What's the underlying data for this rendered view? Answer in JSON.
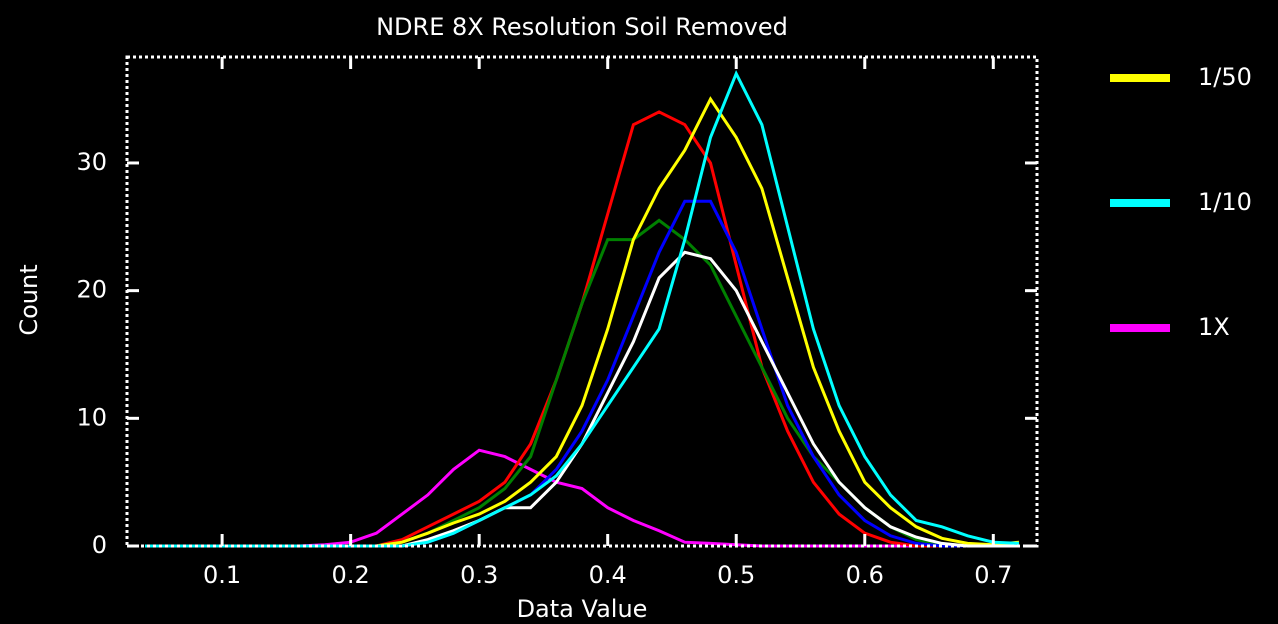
{
  "chart_data": {
    "type": "line",
    "title": "NDRE 8X Resolution Soil Removed",
    "x_label": "Data Value",
    "y_label": "Count",
    "x": [
      0.04,
      0.06,
      0.08,
      0.1,
      0.12,
      0.14,
      0.16,
      0.18,
      0.2,
      0.22,
      0.24,
      0.26,
      0.28,
      0.3,
      0.32,
      0.34,
      0.36,
      0.38,
      0.4,
      0.42,
      0.44,
      0.46,
      0.48,
      0.5,
      0.52,
      0.54,
      0.56,
      0.58,
      0.6,
      0.62,
      0.64,
      0.66,
      0.68,
      0.7,
      0.72
    ],
    "series": [
      {
        "name": "1X",
        "color": "#ff00ff",
        "values": [
          0,
          0,
          0,
          0,
          0,
          0,
          0,
          0.1,
          0.3,
          1,
          2.5,
          4,
          6,
          7.5,
          7,
          6,
          5,
          4.5,
          3,
          2,
          1.2,
          0.3,
          0.2,
          0.1,
          0,
          0,
          0,
          0,
          0,
          0,
          0,
          0,
          0,
          0,
          0
        ]
      },
      {
        "color": "#ff0000",
        "values": [
          0,
          0,
          0,
          0,
          0,
          0,
          0,
          0,
          0,
          0,
          0.5,
          1.5,
          2.5,
          3.5,
          5,
          8,
          13,
          19,
          26,
          33,
          34,
          33,
          30,
          22,
          14,
          9,
          5,
          2.5,
          1,
          0.3,
          0,
          0,
          0,
          0,
          0
        ]
      },
      {
        "color": "#008000",
        "values": [
          0,
          0,
          0,
          0,
          0,
          0,
          0,
          0,
          0,
          0,
          0.3,
          1,
          2,
          3,
          4.5,
          7,
          13,
          19,
          24,
          24,
          25.5,
          24,
          22,
          18,
          14,
          10,
          7,
          5,
          3,
          1.5,
          0.5,
          0.1,
          0,
          0,
          0
        ]
      },
      {
        "color": "#0000ff",
        "values": [
          0,
          0,
          0,
          0,
          0,
          0,
          0,
          0,
          0,
          0,
          0,
          0.3,
          1,
          2,
          3,
          4,
          6,
          9,
          13,
          18,
          23,
          27,
          27,
          23,
          17,
          11,
          7,
          4,
          2,
          0.8,
          0.2,
          0,
          0,
          0,
          0
        ]
      },
      {
        "name": "1/50",
        "color": "#ffff00",
        "values": [
          0,
          0,
          0,
          0,
          0,
          0,
          0,
          0,
          0,
          0,
          0.3,
          1,
          1.8,
          2.5,
          3.5,
          5,
          7,
          11,
          17,
          24,
          28,
          31,
          35,
          32,
          28,
          21,
          14,
          9,
          5,
          3,
          1.5,
          0.6,
          0.2,
          0.1,
          0.3
        ]
      },
      {
        "color": "#ffffff",
        "values": [
          0,
          0,
          0,
          0,
          0,
          0,
          0,
          0,
          0,
          0,
          0,
          0.5,
          1.2,
          2,
          3,
          3,
          5,
          8,
          12,
          16,
          21,
          23,
          22.5,
          20,
          16,
          12,
          8,
          5,
          3,
          1.5,
          0.7,
          0.2,
          0,
          0,
          0
        ]
      },
      {
        "name": "1/10",
        "color": "#00ffff",
        "values": [
          0,
          0,
          0,
          0,
          0,
          0,
          0,
          0,
          0,
          0,
          0,
          0.3,
          1,
          2,
          3,
          4,
          5.5,
          8,
          11,
          14,
          17,
          24,
          32,
          37,
          33,
          25,
          17,
          11,
          7,
          4,
          2,
          1.5,
          0.8,
          0.3,
          0.2
        ]
      }
    ],
    "legend_order": [
      4,
      6,
      0
    ],
    "xlim": [
      0.026,
      0.734
    ],
    "ylim": [
      0,
      38.3
    ],
    "xticks": [
      0.1,
      0.2,
      0.3,
      0.4,
      0.5,
      0.6,
      0.7
    ],
    "yticks": [
      0,
      10,
      20,
      30
    ]
  }
}
